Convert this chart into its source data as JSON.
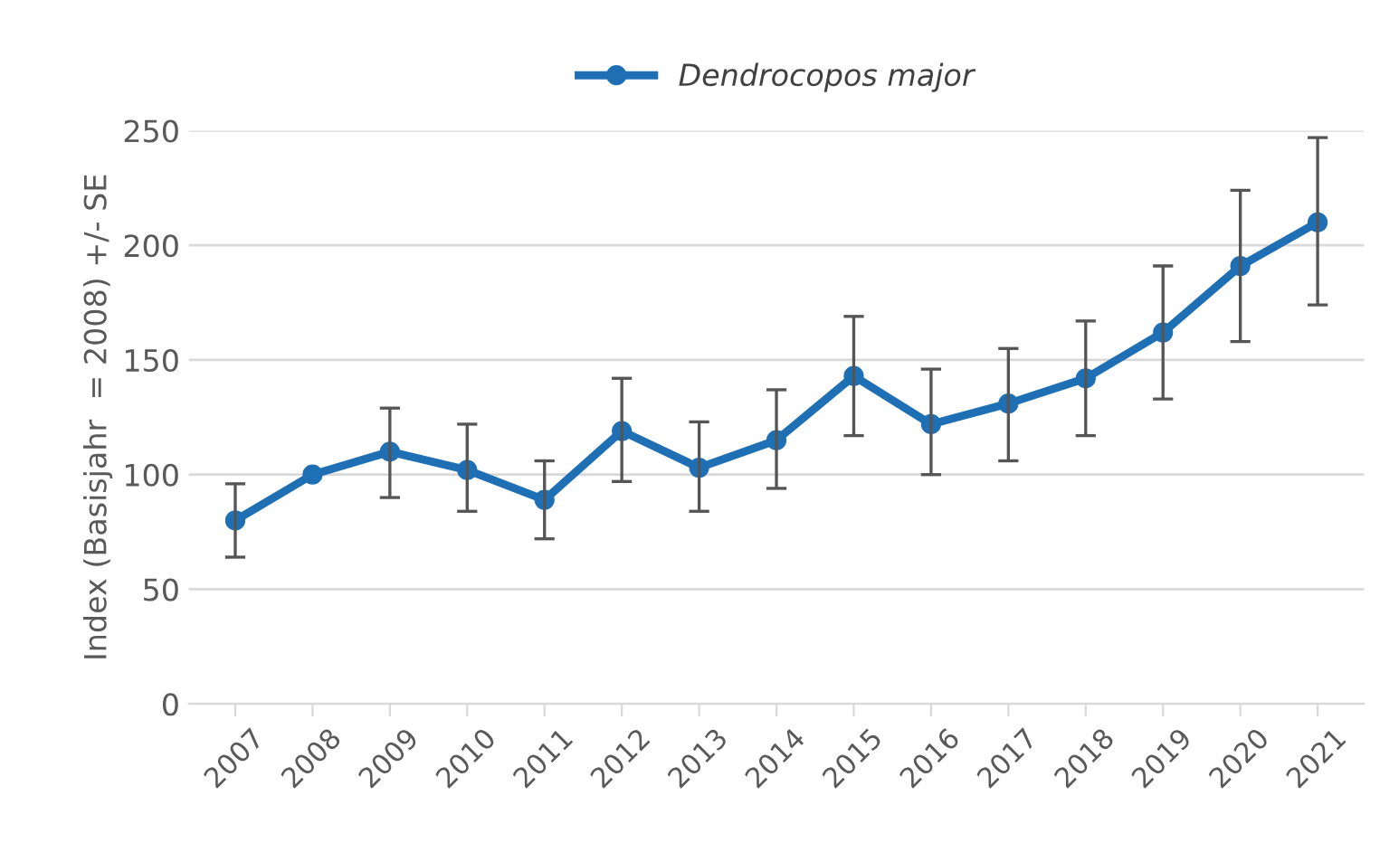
{
  "chart_data": {
    "type": "line",
    "ylabel": "Index (Basisjahr  = 2008) +/- SE",
    "categories": [
      "2007",
      "2008",
      "2009",
      "2010",
      "2011",
      "2012",
      "2013",
      "2014",
      "2015",
      "2016",
      "2017",
      "2018",
      "2019",
      "2020",
      "2021"
    ],
    "series": [
      {
        "name": "Dendrocopos major",
        "color": "#1f6fb5",
        "values": [
          80,
          100,
          110,
          102,
          89,
          119,
          103,
          115,
          143,
          122,
          131,
          142,
          162,
          191,
          210
        ],
        "errors": [
          [
            64,
            96
          ],
          null,
          [
            90,
            129
          ],
          [
            84,
            122
          ],
          [
            72,
            106
          ],
          [
            97,
            142
          ],
          [
            84,
            123
          ],
          [
            94,
            137
          ],
          [
            117,
            169
          ],
          [
            100,
            146
          ],
          [
            106,
            155
          ],
          [
            117,
            167
          ],
          [
            133,
            191
          ],
          [
            158,
            224
          ],
          [
            174,
            247
          ]
        ]
      }
    ],
    "ylim": [
      0,
      250
    ],
    "yticks": [
      0,
      50,
      100,
      150,
      200,
      250
    ],
    "grid": "y",
    "legend": "top",
    "marker": "circle",
    "line_style": "solid"
  }
}
